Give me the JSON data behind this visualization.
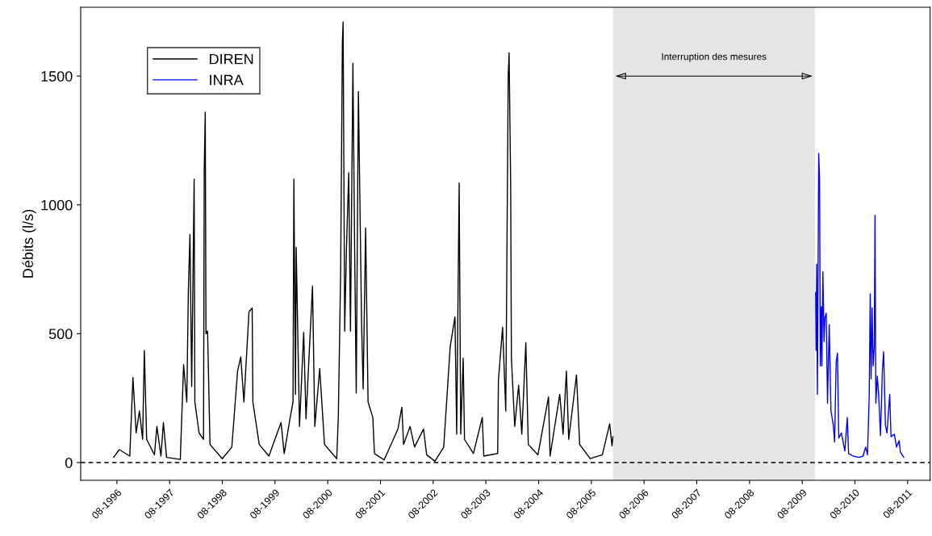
{
  "chart_data": {
    "type": "line",
    "ylabel": "Débits (l/s)",
    "xlim": [
      "1995-11-24",
      "2012-01-04"
    ],
    "ylim": [
      -69,
      1767
    ],
    "xticks": [
      {
        "value": "1996-08-01",
        "label": "08-1996"
      },
      {
        "value": "1997-08-01",
        "label": "08-1997"
      },
      {
        "value": "1998-08-01",
        "label": "08-1998"
      },
      {
        "value": "1999-08-01",
        "label": "08-1999"
      },
      {
        "value": "2000-08-01",
        "label": "08-2000"
      },
      {
        "value": "2001-08-01",
        "label": "08-2001"
      },
      {
        "value": "2002-08-01",
        "label": "08-2002"
      },
      {
        "value": "2003-08-01",
        "label": "08-2003"
      },
      {
        "value": "2004-08-01",
        "label": "08-2004"
      },
      {
        "value": "2005-08-01",
        "label": "08-2005"
      },
      {
        "value": "2006-08-01",
        "label": "08-2006"
      },
      {
        "value": "2007-08-01",
        "label": "08-2007"
      },
      {
        "value": "2008-08-01",
        "label": "08-2008"
      },
      {
        "value": "2009-08-01",
        "label": "08-2009"
      },
      {
        "value": "2010-08-01",
        "label": "08-2010"
      },
      {
        "value": "2011-08-01",
        "label": "08-2011"
      }
    ],
    "yticks": [
      0,
      500,
      1000,
      1500
    ],
    "grid": false,
    "legend": "top left",
    "line_style": "solid",
    "marker": "none",
    "ref_lines": [
      {
        "axis": "y",
        "value": 0,
        "color": "#000000",
        "line_style": "dashed"
      }
    ],
    "bands": [
      {
        "axis": "x",
        "from": "2005-12-28",
        "to": "2009-10-28",
        "label": "Interruption des mesures",
        "color": "#e5e5e5"
      }
    ],
    "series": [
      {
        "name": "DIREN",
        "color": "#000000",
        "x": [
          "1996-07-09",
          "1996-08-17",
          "1996-10-29",
          "1996-11-20",
          "1996-12-12",
          "1997-01-04",
          "1997-01-26",
          "1997-02-07",
          "1997-02-23",
          "1997-04-18",
          "1997-05-05",
          "1997-06-02",
          "1997-06-19",
          "1997-07-11",
          "1997-10-14",
          "1997-11-06",
          "1997-11-28",
          "1997-12-09",
          "1997-12-20",
          "1998-01-01",
          "1998-01-18",
          "1998-01-23",
          "1998-02-21",
          "1998-03-24",
          "1998-03-29",
          "1998-04-05",
          "1998-04-10",
          "1998-04-21",
          "1998-05-08",
          "1998-08-01",
          "1998-10-06",
          "1998-11-15",
          "1998-12-07",
          "1998-12-29",
          "1999-02-02",
          "1999-02-24",
          "1999-03-01",
          "1999-04-14",
          "1999-06-20",
          "1999-09-12",
          "1999-10-04",
          "1999-11-13",
          "1999-12-04",
          "1999-12-10",
          "1999-12-21",
          "1999-12-26",
          "2000-01-18",
          "2000-02-16",
          "2000-03-03",
          "2000-04-17",
          "2000-05-03",
          "2000-06-06",
          "2000-07-09",
          "2000-10-02",
          "2000-10-13",
          "2000-10-29",
          "2000-11-10",
          "2000-11-15",
          "2000-11-26",
          "2000-12-08",
          "2000-12-24",
          "2001-01-05",
          "2001-01-22",
          "2001-02-03",
          "2001-02-14",
          "2001-03-01",
          "2001-03-23",
          "2001-04-03",
          "2001-04-20",
          "2001-05-07",
          "2001-06-09",
          "2001-06-20",
          "2001-08-26",
          "2001-11-30",
          "2001-12-27",
          "2002-01-08",
          "2002-02-22",
          "2002-03-25",
          "2002-05-26",
          "2002-06-17",
          "2002-08-13",
          "2002-10-13",
          "2002-11-27",
          "2002-12-30",
          "2003-01-11",
          "2003-01-28",
          "2003-02-08",
          "2003-02-25",
          "2003-03-06",
          "2003-05-07",
          "2003-07-07",
          "2003-07-18",
          "2003-10-22",
          "2003-10-27",
          "2003-11-25",
          "2003-12-17",
          "2004-01-03",
          "2004-01-09",
          "2004-01-20",
          "2004-01-25",
          "2004-02-17",
          "2004-03-15",
          "2004-04-06",
          "2004-05-04",
          "2004-05-21",
          "2004-07-27",
          "2004-10-08",
          "2004-10-19",
          "2004-12-25",
          "2005-01-17",
          "2005-02-09",
          "2005-02-25",
          "2005-04-20",
          "2005-05-12",
          "2005-07-24",
          "2005-10-16",
          "2005-12-06",
          "2005-12-22",
          "2005-12-28"
        ],
        "values": [
          20,
          50,
          25,
          330,
          115,
          200,
          90,
          435,
          90,
          30,
          140,
          25,
          155,
          20,
          12,
          380,
          235,
          670,
          885,
          295,
          1100,
          235,
          115,
          90,
          1140,
          1360,
          500,
          510,
          70,
          15,
          60,
          355,
          410,
          235,
          585,
          600,
          235,
          70,
          25,
          155,
          35,
          170,
          235,
          1100,
          265,
          835,
          140,
          505,
          170,
          685,
          140,
          365,
          70,
          15,
          180,
          740,
          1630,
          1710,
          510,
          825,
          1125,
          510,
          1550,
          830,
          270,
          1440,
          540,
          285,
          910,
          235,
          175,
          35,
          10,
          130,
          215,
          70,
          140,
          60,
          130,
          30,
          5,
          60,
          450,
          565,
          110,
          1085,
          110,
          405,
          90,
          35,
          175,
          25,
          35,
          320,
          525,
          200,
          1505,
          1590,
          1075,
          405,
          140,
          300,
          110,
          465,
          70,
          30,
          255,
          25,
          265,
          110,
          355,
          90,
          340,
          70,
          15,
          30,
          150,
          65,
          100
        ]
      },
      {
        "name": "INRA",
        "color": "#0000ff",
        "x": [
          "2009-11-02",
          "2009-11-05",
          "2009-11-09",
          "2009-11-14",
          "2009-11-23",
          "2009-11-29",
          "2009-12-04",
          "2009-12-11",
          "2009-12-15",
          "2009-12-22",
          "2009-12-30",
          "2010-01-05",
          "2010-01-14",
          "2010-01-23",
          "2010-02-04",
          "2010-02-16",
          "2010-03-04",
          "2010-03-13",
          "2010-03-24",
          "2010-04-02",
          "2010-04-11",
          "2010-04-29",
          "2010-05-23",
          "2010-06-09",
          "2010-06-18",
          "2010-07-21",
          "2010-08-28",
          "2010-09-26",
          "2010-10-14",
          "2010-10-27",
          "2010-11-08",
          "2010-11-15",
          "2010-11-21",
          "2010-11-28",
          "2010-12-05",
          "2010-12-13",
          "2010-12-18",
          "2010-12-24",
          "2011-01-03",
          "2011-01-12",
          "2011-01-25",
          "2011-02-07",
          "2011-02-16",
          "2011-02-28",
          "2011-03-11",
          "2011-03-30",
          "2011-04-08",
          "2011-05-01",
          "2011-05-16",
          "2011-06-03",
          "2011-06-12",
          "2011-07-05"
        ],
        "values": [
          660,
          435,
          770,
          265,
          1200,
          1100,
          375,
          605,
          375,
          740,
          470,
          560,
          580,
          230,
          535,
          200,
          145,
          80,
          390,
          425,
          95,
          115,
          45,
          175,
          35,
          25,
          20,
          25,
          60,
          30,
          260,
          655,
          325,
          600,
          375,
          450,
          960,
          230,
          335,
          265,
          105,
          355,
          430,
          145,
          115,
          265,
          100,
          110,
          60,
          85,
          40,
          20
        ]
      }
    ]
  }
}
